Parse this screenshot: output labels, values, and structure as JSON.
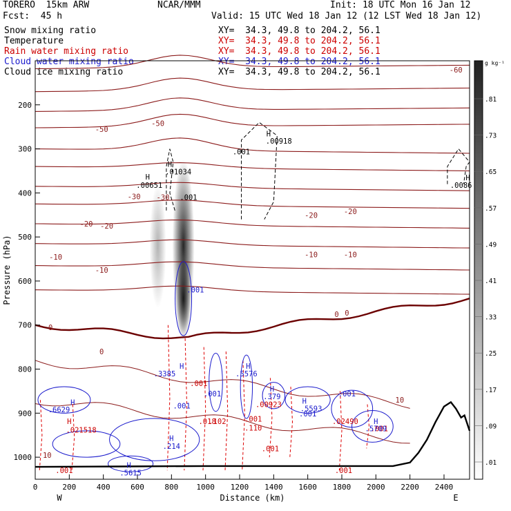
{
  "header": {
    "model": "TORERO  15km ARW",
    "org": "NCAR/MMM",
    "init": "Init: 18 UTC Mon 16 Jan 12",
    "fcst": "Fcst:  45 h",
    "valid": "Valid: 15 UTC Wed 18 Jan 12 (12 LST Wed 18 Jan 12)"
  },
  "legend": [
    {
      "label": "Snow mixing ratio",
      "xy": "XY=  34.3, 49.8 to 204.2, 56.1",
      "color": "#000000"
    },
    {
      "label": "Temperature",
      "xy": "XY=  34.3, 49.8 to 204.2, 56.1",
      "color": "#cc0000"
    },
    {
      "label": "Rain water mixing ratio",
      "xy": "XY=  34.3, 49.8 to 204.2, 56.1",
      "color": "#cc0000"
    },
    {
      "label": "Cloud water mixing ratio",
      "xy": "XY=  34.3, 49.8 to 204.2, 56.1",
      "color": "#1a1acc"
    },
    {
      "label": "Cloud ice mixing ratio",
      "xy": "XY=  34.3, 49.8 to 204.2, 56.1",
      "color": "#000000"
    }
  ],
  "chart_data": {
    "type": "contour_cross_section",
    "xlabel": "Distance (km)",
    "ylabel": "Pressure (hPa)",
    "xlim": [
      0,
      2550
    ],
    "ylim": [
      1050,
      100
    ],
    "x_ticks": [
      0,
      200,
      400,
      600,
      800,
      1000,
      1200,
      1400,
      1600,
      1800,
      2000,
      2200,
      2400
    ],
    "y_ticks": [
      200,
      300,
      400,
      500,
      600,
      700,
      800,
      900,
      1000
    ],
    "endpoints": {
      "left": "W",
      "right": "E"
    },
    "colorbar": {
      "unit": "g kg⁻¹",
      "ticks": [
        ".81",
        ".73",
        ".65",
        ".57",
        ".49",
        ".41",
        ".33",
        ".25",
        ".17",
        ".09",
        ".01"
      ]
    },
    "temperature_labels": [
      {
        "text": "-60",
        "x": 2470,
        "p": 120
      },
      {
        "text": "-50",
        "x": 390,
        "p": 255
      },
      {
        "text": "-50",
        "x": 720,
        "p": 242
      },
      {
        "text": "-30",
        "x": 580,
        "p": 408
      },
      {
        "text": "-30",
        "x": 750,
        "p": 410
      },
      {
        "text": "-20",
        "x": 300,
        "p": 470
      },
      {
        "text": "-20",
        "x": 420,
        "p": 475
      },
      {
        "text": "-20",
        "x": 1620,
        "p": 450
      },
      {
        "text": "-20",
        "x": 1850,
        "p": 442
      },
      {
        "text": "-10",
        "x": 120,
        "p": 545
      },
      {
        "text": "-10",
        "x": 390,
        "p": 575
      },
      {
        "text": "-10",
        "x": 1620,
        "p": 540
      },
      {
        "text": "-10",
        "x": 1850,
        "p": 540
      },
      {
        "text": "0",
        "x": 90,
        "p": 705
      },
      {
        "text": "0",
        "x": 390,
        "p": 760
      },
      {
        "text": "0",
        "x": 1770,
        "p": 675
      },
      {
        "text": "0",
        "x": 1830,
        "p": 672
      },
      {
        "text": "10",
        "x": 2140,
        "p": 870
      },
      {
        "text": "10",
        "x": 70,
        "p": 995
      }
    ],
    "rain_labels": [
      {
        "text": "H",
        "x": 200,
        "p": 918
      },
      {
        "text": ".021518",
        "x": 270,
        "p": 938
      },
      {
        "text": ".001",
        "x": 170,
        "p": 1030
      },
      {
        "text": ".001",
        "x": 960,
        "p": 832
      },
      {
        "text": ".018",
        "x": 1010,
        "p": 918
      },
      {
        "text": ".102",
        "x": 1070,
        "p": 918
      },
      {
        "text": ".001",
        "x": 1280,
        "p": 913
      },
      {
        "text": ".110",
        "x": 1280,
        "p": 933
      },
      {
        "text": ".00923",
        "x": 1370,
        "p": 880
      },
      {
        "text": ".001",
        "x": 1380,
        "p": 980
      },
      {
        "text": ".02490",
        "x": 1820,
        "p": 918
      },
      {
        "text": ".001",
        "x": 1810,
        "p": 1030
      },
      {
        "text": ".001",
        "x": 2020,
        "p": 935
      }
    ],
    "cloud_water_labels": [
      {
        "text": ".001",
        "x": 940,
        "p": 620
      },
      {
        "text": "H",
        "x": 860,
        "p": 793
      },
      {
        "text": ".3385",
        "x": 760,
        "p": 810
      },
      {
        "text": ".001",
        "x": 1040,
        "p": 856
      },
      {
        "text": "H",
        "x": 1250,
        "p": 793
      },
      {
        "text": ".5576",
        "x": 1240,
        "p": 810
      },
      {
        "text": "H",
        "x": 1390,
        "p": 845
      },
      {
        "text": ".379",
        "x": 1390,
        "p": 862
      },
      {
        "text": ".001",
        "x": 1830,
        "p": 856
      },
      {
        "text": "H",
        "x": 1580,
        "p": 872
      },
      {
        "text": ".5593",
        "x": 1620,
        "p": 889
      },
      {
        "text": ".001",
        "x": 1600,
        "p": 901
      },
      {
        "text": ".001",
        "x": 860,
        "p": 883
      },
      {
        "text": "H",
        "x": 220,
        "p": 875
      },
      {
        "text": ".6629",
        "x": 140,
        "p": 892
      },
      {
        "text": "H",
        "x": 2000,
        "p": 918
      },
      {
        "text": ".5709",
        "x": 2000,
        "p": 935
      },
      {
        "text": "H",
        "x": 800,
        "p": 957
      },
      {
        "text": ".214",
        "x": 800,
        "p": 975
      },
      {
        "text": "H",
        "x": 550,
        "p": 1018
      },
      {
        "text": ".5615",
        "x": 560,
        "p": 1035
      }
    ],
    "snow_ice_labels": [
      {
        "text": "H",
        "x": 790,
        "p": 334
      },
      {
        "text": ".01034",
        "x": 840,
        "p": 352
      },
      {
        "text": "H",
        "x": 660,
        "p": 363
      },
      {
        "text": ".00651",
        "x": 670,
        "p": 382
      },
      {
        "text": ".001",
        "x": 900,
        "p": 410
      },
      {
        "text": ".001",
        "x": 1210,
        "p": 306
      },
      {
        "text": "H",
        "x": 1370,
        "p": 265
      },
      {
        "text": ".00918",
        "x": 1430,
        "p": 282
      },
      {
        "text": "H",
        "x": 2540,
        "p": 365
      },
      {
        "text": ".0086",
        "x": 2500,
        "p": 382
      }
    ]
  }
}
